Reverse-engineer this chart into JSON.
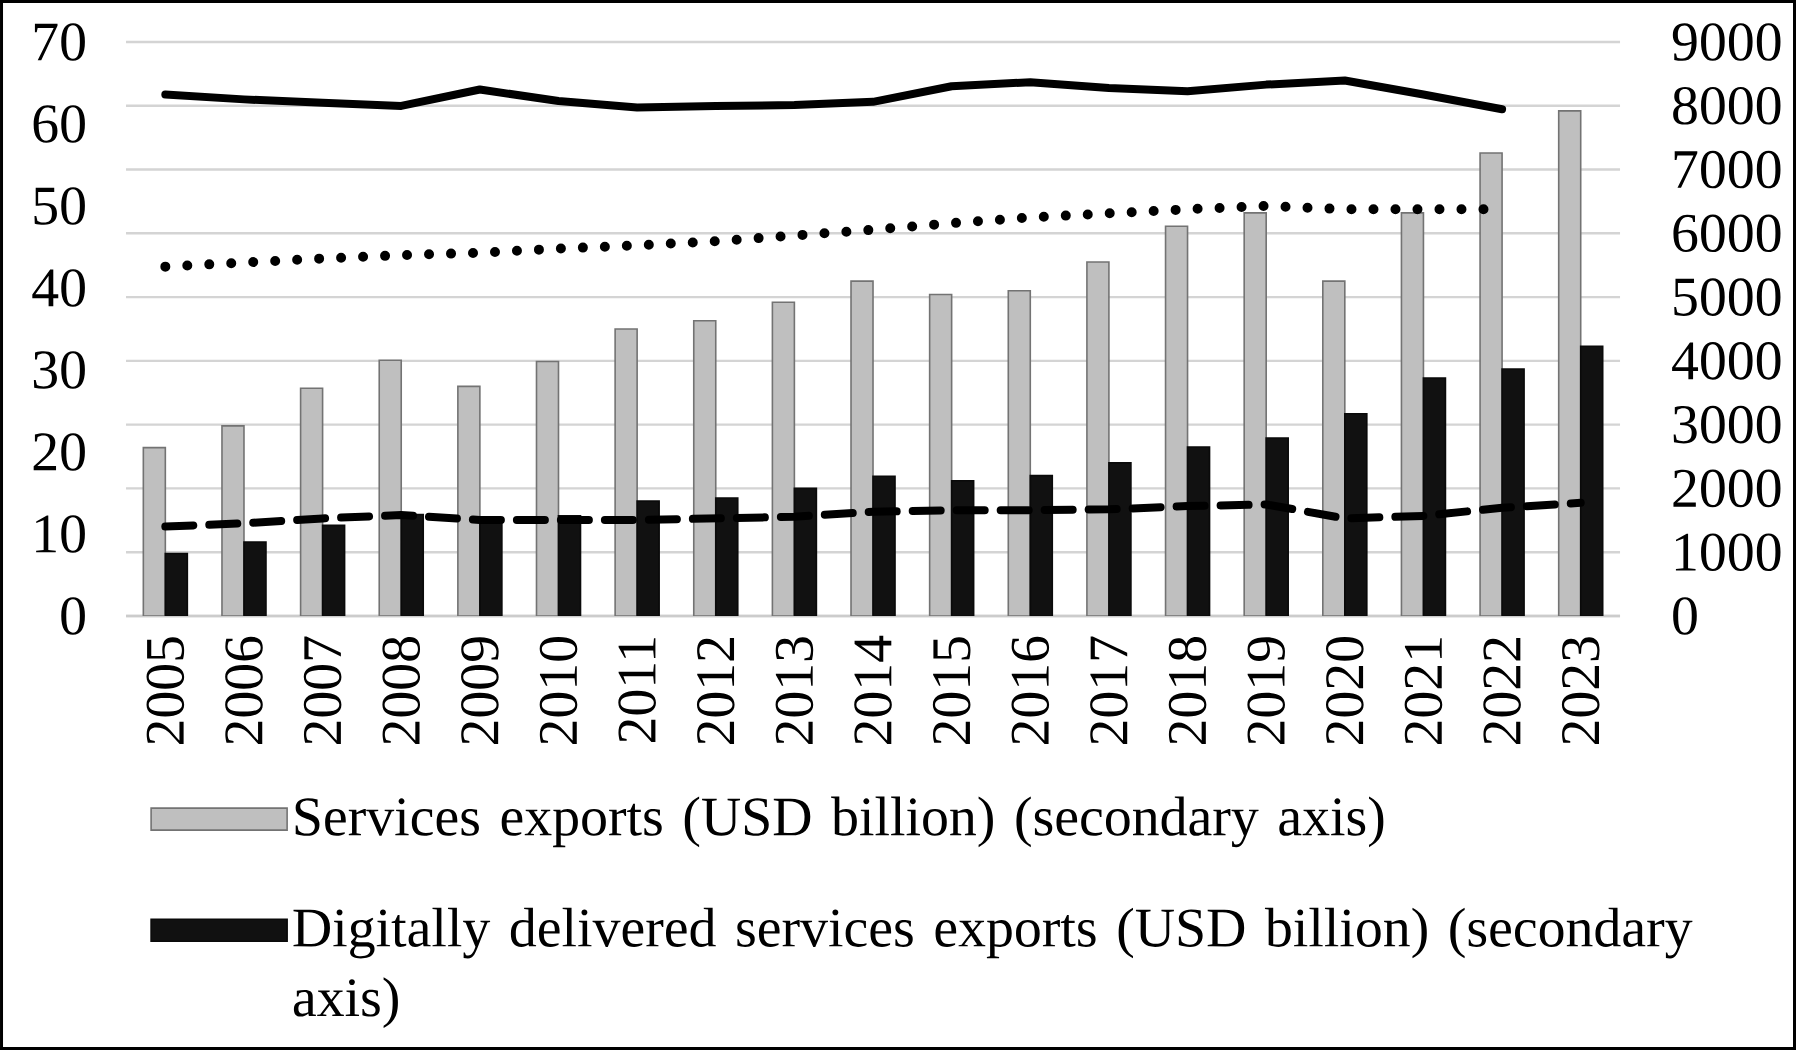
{
  "chart_data": {
    "type": "bar",
    "categories": [
      "2005",
      "2006",
      "2007",
      "2008",
      "2009",
      "2010",
      "2011",
      "2012",
      "2013",
      "2014",
      "2015",
      "2016",
      "2017",
      "2018",
      "2019",
      "2020",
      "2021",
      "2022",
      "2023"
    ],
    "series": [
      {
        "name": "Services exports (USD billion) (secondary axis)",
        "axis": "y2",
        "color": "#bfbfbf",
        "values": [
          2640,
          2980,
          3570,
          4010,
          3600,
          3990,
          4500,
          4630,
          4920,
          5250,
          5040,
          5100,
          5550,
          6110,
          6320,
          5250,
          6320,
          7260,
          7920
        ]
      },
      {
        "name": "Digitally delivered services exports (USD billion) (secondary axis)",
        "axis": "y2",
        "color": "#111111",
        "values": [
          980,
          1160,
          1420,
          1590,
          1500,
          1570,
          1800,
          1850,
          2000,
          2190,
          2120,
          2200,
          2400,
          2650,
          2790,
          3170,
          3730,
          3870,
          4230
        ]
      },
      {
        "type": "line",
        "color": "#000000",
        "line_style": "solid",
        "values": [
          63.6,
          63.0,
          62.6,
          62.2,
          64.2,
          62.8,
          62.0,
          62.2,
          62.3,
          62.7,
          64.6,
          65.1,
          64.4,
          64.0,
          64.8,
          65.3,
          63.6,
          61.8,
          null
        ]
      },
      {
        "type": "line",
        "color": "#000000",
        "line_style": "dotted",
        "values": [
          42.6,
          43.1,
          43.6,
          44.0,
          44.3,
          44.8,
          45.2,
          45.7,
          46.4,
          47.1,
          47.9,
          48.6,
          49.1,
          49.6,
          50.0,
          49.6,
          49.6,
          49.6,
          null
        ]
      },
      {
        "type": "line",
        "color": "#000000",
        "line_style": "dashed",
        "values": [
          10.9,
          11.3,
          11.9,
          12.3,
          11.7,
          11.7,
          11.7,
          11.9,
          12.1,
          12.7,
          12.9,
          12.9,
          13.0,
          13.4,
          13.6,
          11.9,
          12.2,
          13.2,
          13.8
        ]
      }
    ],
    "ylim": [
      0,
      70
    ],
    "yticks": [
      0,
      10,
      20,
      30,
      40,
      50,
      60,
      70
    ],
    "y2lim": [
      0,
      9000
    ],
    "y2ticks": [
      0,
      1000,
      2000,
      3000,
      4000,
      5000,
      6000,
      7000,
      8000,
      9000
    ],
    "grid": "y",
    "legend": "bottom"
  }
}
